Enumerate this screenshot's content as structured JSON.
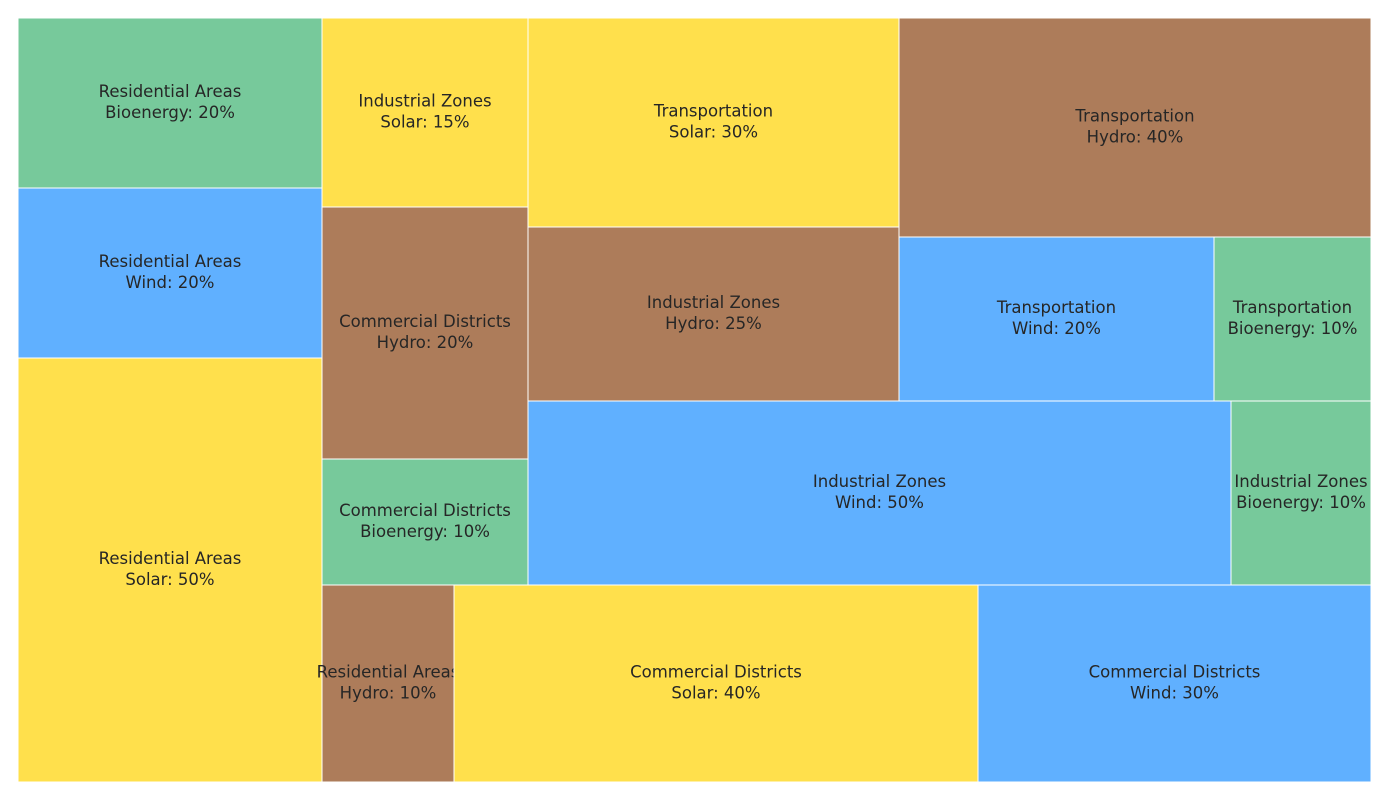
{
  "chart_data": {
    "type": "treemap",
    "colors": {
      "Solar": "#ffe04c",
      "Wind": "#60b0ff",
      "Hydro": "#ad7c5a",
      "Bioenergy": "#77c99b"
    },
    "cells": [
      {
        "sector": "Residential Areas",
        "source": "Bioenergy",
        "value": 20,
        "label_line1": "Residential Areas",
        "label_line2": "Bioenergy: 20%"
      },
      {
        "sector": "Residential Areas",
        "source": "Wind",
        "value": 20,
        "label_line1": "Residential Areas",
        "label_line2": "Wind: 20%"
      },
      {
        "sector": "Residential Areas",
        "source": "Solar",
        "value": 50,
        "label_line1": "Residential Areas",
        "label_line2": "Solar: 50%"
      },
      {
        "sector": "Industrial Zones",
        "source": "Solar",
        "value": 15,
        "label_line1": "Industrial Zones",
        "label_line2": "Solar: 15%"
      },
      {
        "sector": "Commercial Districts",
        "source": "Hydro",
        "value": 20,
        "label_line1": "Commercial Districts",
        "label_line2": "Hydro: 20%"
      },
      {
        "sector": "Commercial Districts",
        "source": "Bioenergy",
        "value": 10,
        "label_line1": "Commercial Districts",
        "label_line2": "Bioenergy: 10%"
      },
      {
        "sector": "Residential Areas",
        "source": "Hydro",
        "value": 10,
        "label_line1": "Residential Areas",
        "label_line2": "Hydro: 10%"
      },
      {
        "sector": "Transportation",
        "source": "Solar",
        "value": 30,
        "label_line1": "Transportation",
        "label_line2": "Solar: 30%"
      },
      {
        "sector": "Industrial Zones",
        "source": "Hydro",
        "value": 25,
        "label_line1": "Industrial Zones",
        "label_line2": "Hydro: 25%"
      },
      {
        "sector": "Transportation",
        "source": "Hydro",
        "value": 40,
        "label_line1": "Transportation",
        "label_line2": "Hydro: 40%"
      },
      {
        "sector": "Transportation",
        "source": "Wind",
        "value": 20,
        "label_line1": "Transportation",
        "label_line2": "Wind: 20%"
      },
      {
        "sector": "Transportation",
        "source": "Bioenergy",
        "value": 10,
        "label_line1": "Transportation",
        "label_line2": "Bioenergy: 10%"
      },
      {
        "sector": "Industrial Zones",
        "source": "Wind",
        "value": 50,
        "label_line1": "Industrial Zones",
        "label_line2": "Wind: 50%"
      },
      {
        "sector": "Industrial Zones",
        "source": "Bioenergy",
        "value": 10,
        "label_line1": "Industrial Zones",
        "label_line2": "Bioenergy: 10%"
      },
      {
        "sector": "Commercial Districts",
        "source": "Solar",
        "value": 40,
        "label_line1": "Commercial Districts",
        "label_line2": "Solar: 40%"
      },
      {
        "sector": "Commercial Districts",
        "source": "Wind",
        "value": 30,
        "label_line1": "Commercial Districts",
        "label_line2": "Wind: 30%"
      }
    ]
  }
}
